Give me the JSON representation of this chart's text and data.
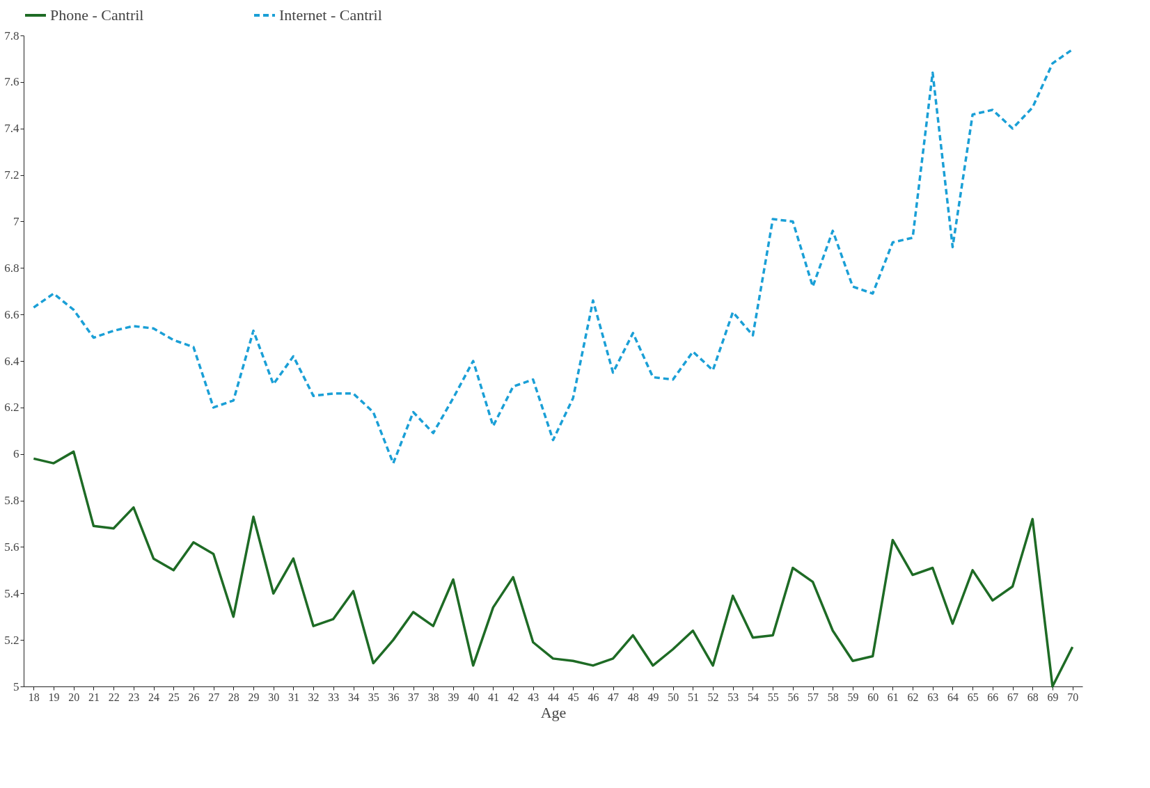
{
  "chart_data": {
    "type": "line",
    "xlabel": "Age",
    "categories": [
      "18",
      "19",
      "20",
      "21",
      "22",
      "23",
      "24",
      "25",
      "26",
      "27",
      "28",
      "29",
      "30",
      "31",
      "32",
      "33",
      "34",
      "35",
      "36",
      "37",
      "38",
      "39",
      "40",
      "41",
      "42",
      "43",
      "44",
      "45",
      "46",
      "47",
      "48",
      "49",
      "50",
      "51",
      "52",
      "53",
      "54",
      "55",
      "56",
      "57",
      "58",
      "59",
      "60",
      "61",
      "62",
      "63",
      "64",
      "65",
      "66",
      "67",
      "68",
      "69",
      "70"
    ],
    "ylim": [
      5,
      7.8
    ],
    "yticks": [
      5,
      5.2,
      5.4,
      5.6,
      5.8,
      6,
      6.2,
      6.4,
      6.6,
      6.8,
      7,
      7.2,
      7.4,
      7.6,
      7.8
    ],
    "grid": false,
    "legend": "top",
    "marker": "none",
    "series": [
      {
        "name": "Phone - Cantril",
        "color": "#1e6b25",
        "line_style": "solid",
        "values": [
          5.98,
          5.96,
          6.01,
          5.69,
          5.68,
          5.77,
          5.55,
          5.5,
          5.62,
          5.57,
          5.3,
          5.73,
          5.4,
          5.55,
          5.26,
          5.29,
          5.41,
          5.1,
          5.2,
          5.32,
          5.26,
          5.46,
          5.09,
          5.34,
          5.47,
          5.19,
          5.12,
          5.11,
          5.09,
          5.12,
          5.22,
          5.09,
          5.16,
          5.24,
          5.09,
          5.39,
          5.21,
          5.22,
          5.51,
          5.45,
          5.24,
          5.11,
          5.13,
          5.63,
          5.48,
          5.51,
          5.27,
          5.5,
          5.37,
          5.43,
          5.72,
          5.0,
          5.17
        ]
      },
      {
        "name": "Internet - Cantril",
        "color": "#1a9fd6",
        "line_style": "dashed",
        "values": [
          6.63,
          6.69,
          6.62,
          6.5,
          6.53,
          6.55,
          6.54,
          6.49,
          6.46,
          6.2,
          6.23,
          6.53,
          6.3,
          6.42,
          6.25,
          6.26,
          6.26,
          6.18,
          5.96,
          6.18,
          6.09,
          6.24,
          6.4,
          6.12,
          6.29,
          6.32,
          6.06,
          6.24,
          6.66,
          6.35,
          6.52,
          6.33,
          6.32,
          6.44,
          6.36,
          6.61,
          6.51,
          7.01,
          7.0,
          6.72,
          6.96,
          6.72,
          6.69,
          6.91,
          6.93,
          7.64,
          6.89,
          7.46,
          7.48,
          7.4,
          7.49,
          7.68,
          7.74
        ]
      }
    ]
  }
}
